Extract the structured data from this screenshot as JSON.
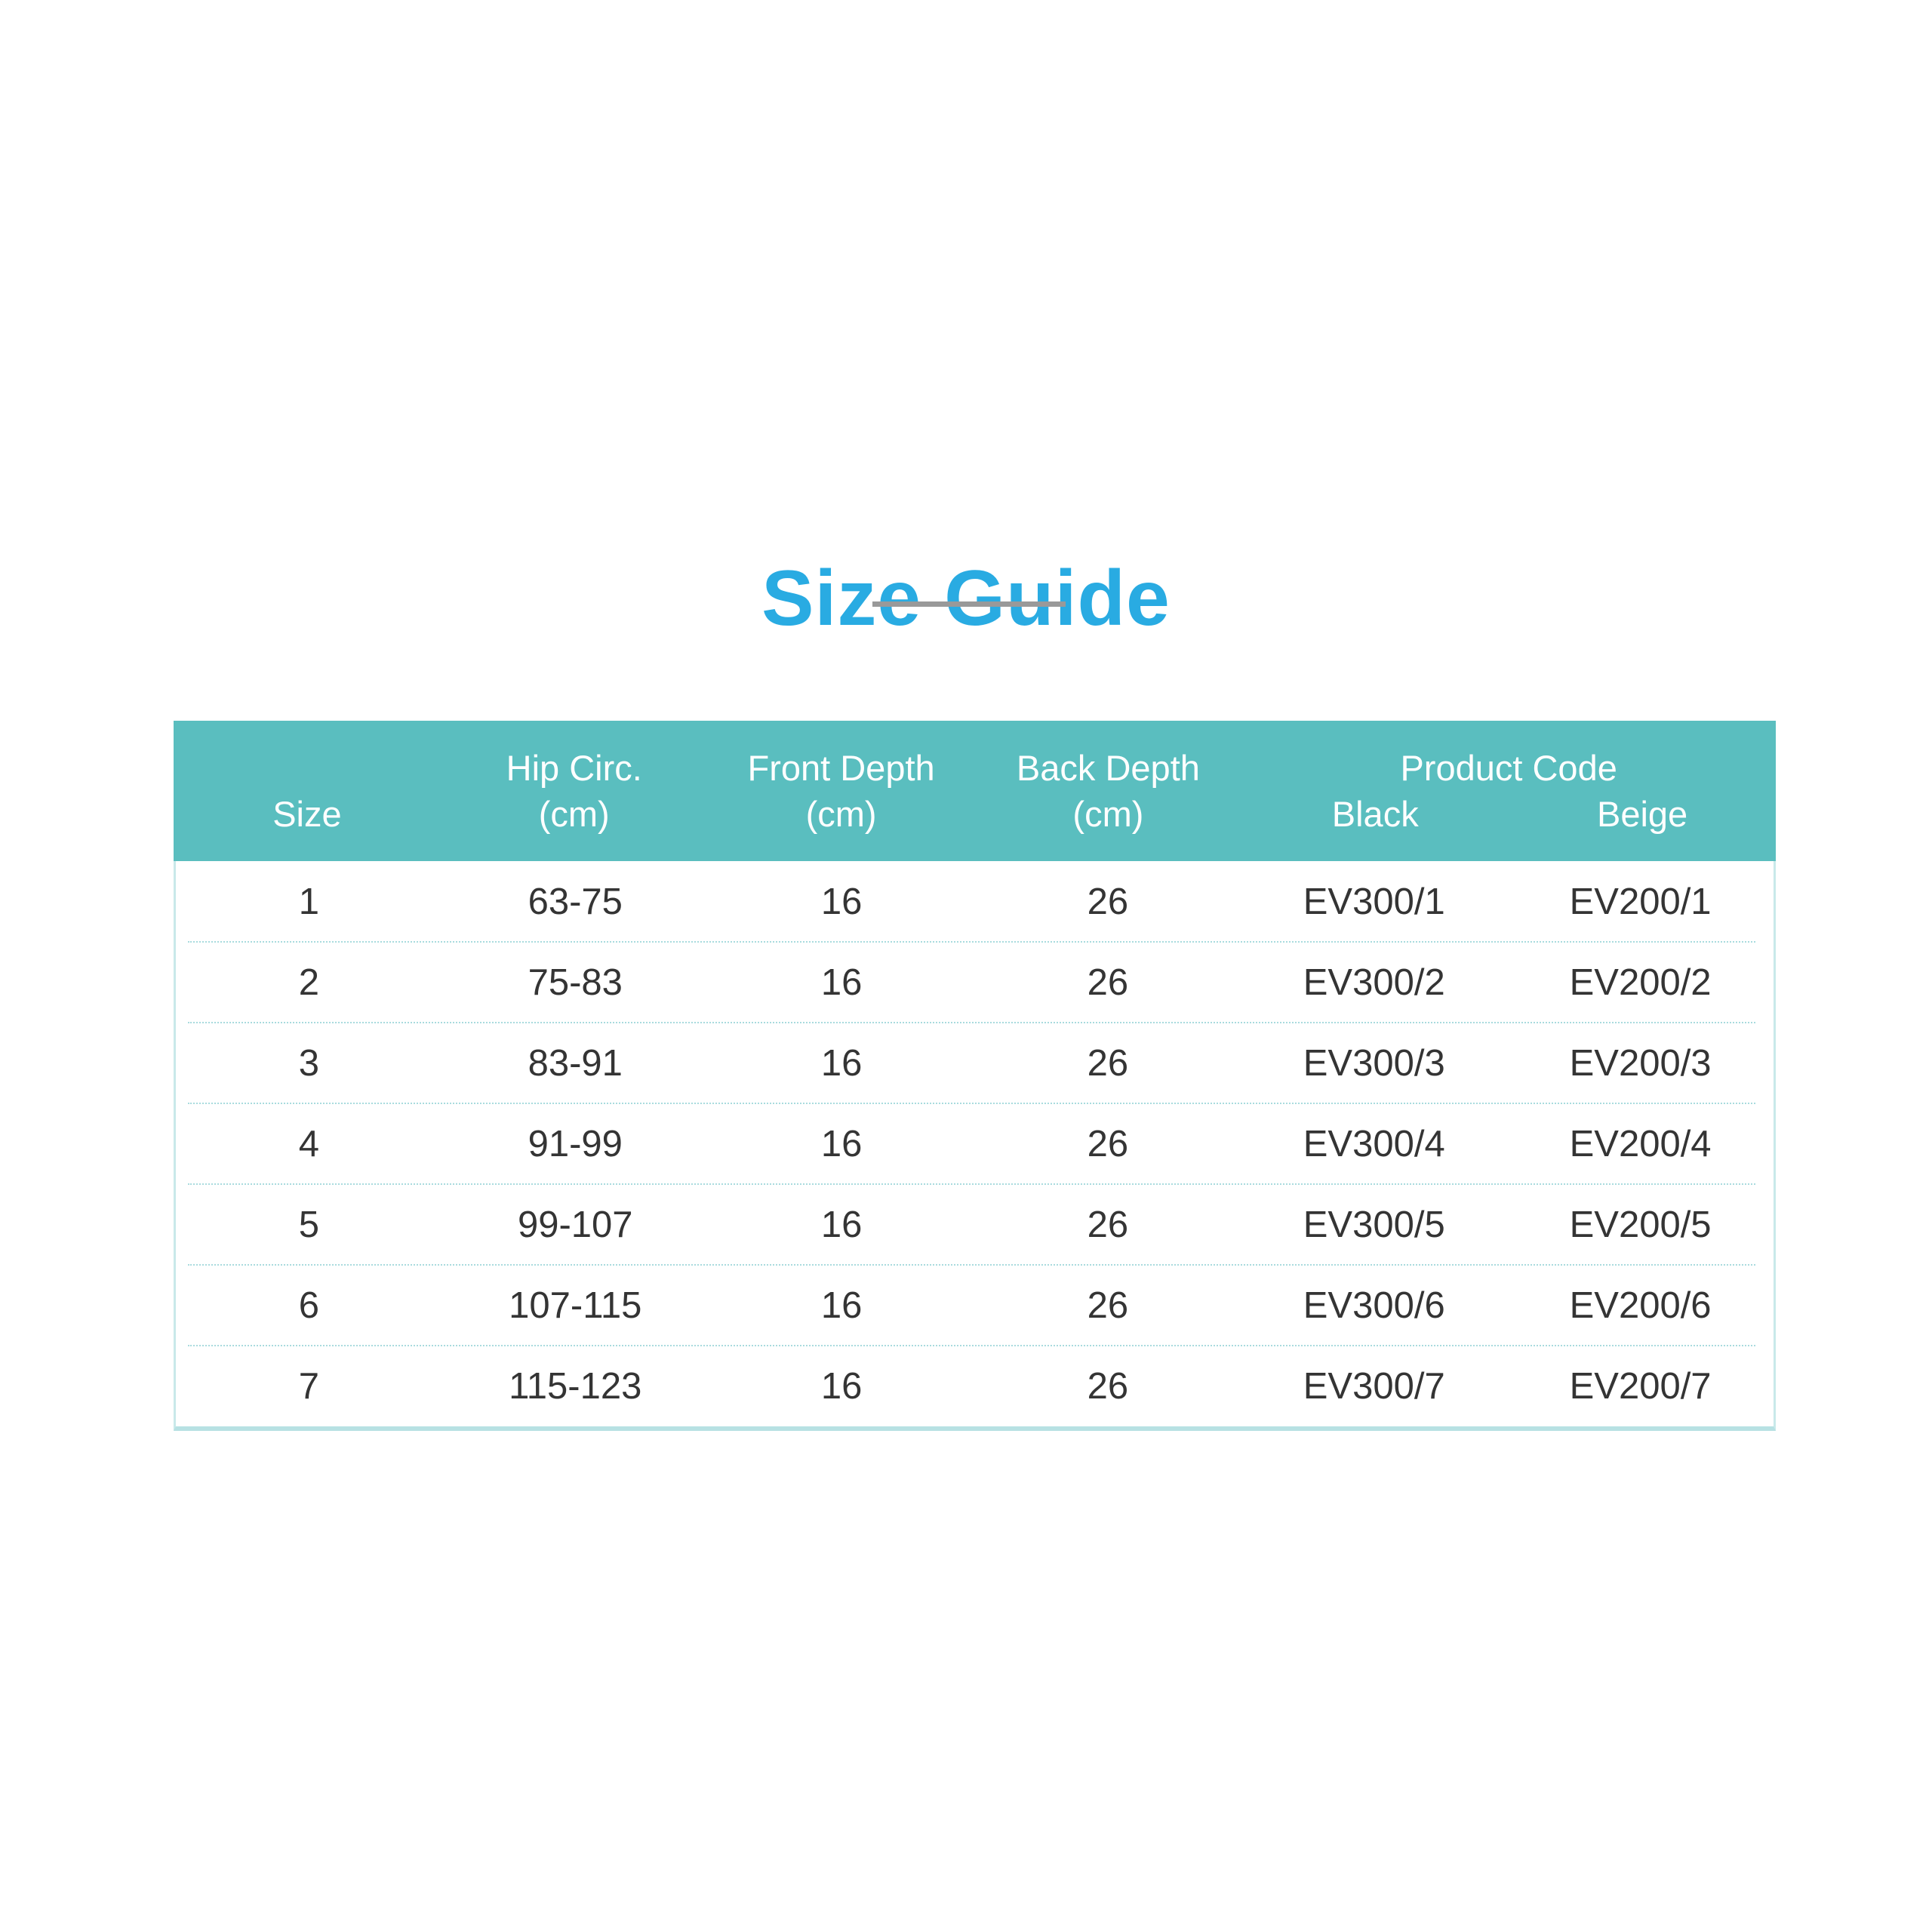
{
  "colors": {
    "title": "#29ABE2",
    "rule": "#999999",
    "header_bg": "#5ABEBF",
    "header_text": "#FFFFFF",
    "body_text": "#343434",
    "divider": "#A9DBDE",
    "border_light": "#C9E9EA",
    "border_strong": "#B7E1E3"
  },
  "title": {
    "text": "Size Guide"
  },
  "table": {
    "header": {
      "size": "Size",
      "hip": "Hip Circ.",
      "hip_unit": "(cm)",
      "front": "Front Depth",
      "front_unit": "(cm)",
      "back": "Back Depth",
      "back_unit": "(cm)",
      "product_code": "Product Code",
      "black": "Black",
      "beige": "Beige"
    },
    "rows": [
      {
        "size": "1",
        "hip": "63-75",
        "front": "16",
        "back": "26",
        "black": "EV300/1",
        "beige": "EV200/1"
      },
      {
        "size": "2",
        "hip": "75-83",
        "front": "16",
        "back": "26",
        "black": "EV300/2",
        "beige": "EV200/2"
      },
      {
        "size": "3",
        "hip": "83-91",
        "front": "16",
        "back": "26",
        "black": "EV300/3",
        "beige": "EV200/3"
      },
      {
        "size": "4",
        "hip": "91-99",
        "front": "16",
        "back": "26",
        "black": "EV300/4",
        "beige": "EV200/4"
      },
      {
        "size": "5",
        "hip": "99-107",
        "front": "16",
        "back": "26",
        "black": "EV300/5",
        "beige": "EV200/5"
      },
      {
        "size": "6",
        "hip": "107-115",
        "front": "16",
        "back": "26",
        "black": "EV300/6",
        "beige": "EV200/6"
      },
      {
        "size": "7",
        "hip": "115-123",
        "front": "16",
        "back": "26",
        "black": "EV300/7",
        "beige": "EV200/7"
      }
    ]
  }
}
